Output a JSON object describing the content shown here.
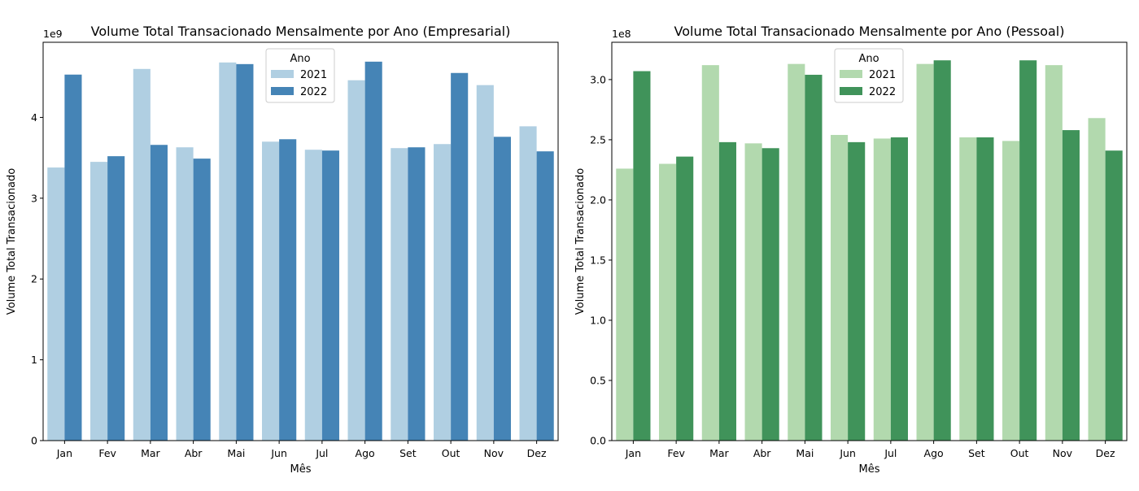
{
  "chart_data": [
    {
      "type": "bar",
      "title": "Volume Total Transacionado Mensalmente por Ano (Empresarial)",
      "xlabel": "Mês",
      "ylabel": "Volume Total Transacionado",
      "offset_label": "1e9",
      "scale": 1000000000,
      "ylim": [
        0,
        4.93
      ],
      "yticks": [
        0,
        1,
        2,
        3,
        4
      ],
      "ytick_labels": [
        "0",
        "1",
        "2",
        "3",
        "4"
      ],
      "categories": [
        "Jan",
        "Fev",
        "Mar",
        "Abr",
        "Mai",
        "Jun",
        "Jul",
        "Ago",
        "Set",
        "Out",
        "Nov",
        "Dez"
      ],
      "legend": {
        "title": "Ano",
        "placement": "upper center"
      },
      "grid": false,
      "series": [
        {
          "name": "2021",
          "color": "#b0cfe2",
          "values": [
            3.38,
            3.45,
            4.6,
            3.63,
            4.68,
            3.7,
            3.6,
            4.46,
            3.62,
            3.67,
            4.4,
            3.89
          ]
        },
        {
          "name": "2022",
          "color": "#4584b6",
          "values": [
            4.53,
            3.52,
            3.66,
            3.49,
            4.66,
            3.73,
            3.59,
            4.69,
            3.63,
            4.55,
            3.76,
            3.58
          ]
        }
      ]
    },
    {
      "type": "bar",
      "title": "Volume Total Transacionado Mensalmente por Ano (Pessoal)",
      "xlabel": "Mês",
      "ylabel": "Volume Total Transacionado",
      "offset_label": "1e8",
      "scale": 100000000,
      "ylim": [
        0,
        3.31
      ],
      "yticks": [
        0,
        0.5,
        1,
        1.5,
        2,
        2.5,
        3
      ],
      "ytick_labels": [
        "0.0",
        "0.5",
        "1.0",
        "1.5",
        "2.0",
        "2.5",
        "3.0"
      ],
      "categories": [
        "Jan",
        "Fev",
        "Mar",
        "Abr",
        "Mai",
        "Jun",
        "Jul",
        "Ago",
        "Set",
        "Out",
        "Nov",
        "Dez"
      ],
      "legend": {
        "title": "Ano",
        "placement": "upper center"
      },
      "grid": false,
      "series": [
        {
          "name": "2021",
          "color": "#b2d9ae",
          "values": [
            2.26,
            2.3,
            3.12,
            2.47,
            3.13,
            2.54,
            2.51,
            3.13,
            2.52,
            2.49,
            3.12,
            2.68
          ]
        },
        {
          "name": "2022",
          "color": "#40935a",
          "values": [
            3.07,
            2.36,
            2.48,
            2.43,
            3.04,
            2.48,
            2.52,
            3.16,
            2.52,
            3.16,
            2.58,
            2.41
          ]
        }
      ]
    }
  ]
}
